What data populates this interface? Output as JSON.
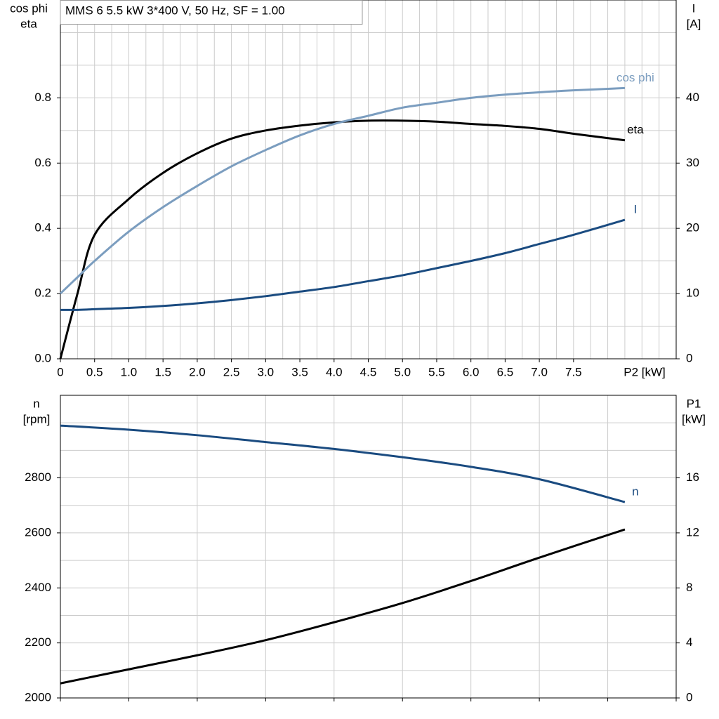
{
  "chart_data": [
    {
      "type": "line",
      "title": "MMS 6   5.5 kW   3*400 V, 50 Hz, SF = 1.00",
      "ylabel": [
        "cos phi",
        "eta"
      ],
      "y2label": [
        "I",
        "[A]"
      ],
      "xlabel": "P2 [kW]",
      "x": [
        0,
        0.25,
        0.5,
        1,
        1.5,
        2,
        2.5,
        3,
        3.5,
        4,
        4.5,
        5,
        5.5,
        6,
        6.5,
        7,
        7.5,
        8.25
      ],
      "xlim": [
        0,
        9
      ],
      "xticks": [
        0,
        0.5,
        {
          "value": 1,
          "label": "1.0"
        },
        1.5,
        {
          "value": 2,
          "label": "2.0"
        },
        2.5,
        {
          "value": 3,
          "label": "3.0"
        },
        3.5,
        {
          "value": 4,
          "label": "4.0"
        },
        4.5,
        {
          "value": 5,
          "label": "5.0"
        },
        5.5,
        {
          "value": 6,
          "label": "6.0"
        },
        6.5,
        {
          "value": 7,
          "label": "7.0"
        },
        7.5
      ],
      "xtick_labels": true,
      "ylim": [
        0,
        1.1
      ],
      "yticks": [
        {
          "value": 0,
          "label": "0.0"
        },
        0.2,
        0.4,
        0.6,
        0.8
      ],
      "y2lim": [
        0,
        55
      ],
      "y2ticks": [
        0,
        10,
        20,
        30,
        40
      ],
      "grid": true,
      "xgrid_per_tick": 2,
      "ygrid_per_tick": 2,
      "series": [
        {
          "name": "eta",
          "color": "#000000",
          "values": [
            0,
            0.2,
            0.38,
            0.49,
            0.57,
            0.63,
            0.675,
            0.7,
            0.715,
            0.725,
            0.73,
            0.73,
            0.727,
            0.72,
            0.714,
            0.705,
            0.69,
            0.67
          ]
        },
        {
          "name": "cos phi",
          "color": "#7b9dbf",
          "values": [
            0.2,
            0.25,
            0.3,
            0.39,
            0.465,
            0.53,
            0.59,
            0.64,
            0.685,
            0.72,
            0.745,
            0.77,
            0.785,
            0.8,
            0.81,
            0.817,
            0.823,
            0.83
          ]
        },
        {
          "name": "I",
          "color": "#1a4b80",
          "axis": "y2",
          "values": [
            7.5,
            7.5,
            7.6,
            7.8,
            8.1,
            8.5,
            9.0,
            9.6,
            10.3,
            11.0,
            11.9,
            12.8,
            13.9,
            15.0,
            16.2,
            17.6,
            19.0,
            21.3
          ]
        }
      ]
    },
    {
      "type": "line",
      "ylabel": [
        "n",
        "[rpm]"
      ],
      "y2label": [
        "P1",
        "[kW]"
      ],
      "x": [
        0,
        1,
        2,
        3,
        4,
        5,
        6,
        7,
        8.25
      ],
      "xlim": [
        0,
        9
      ],
      "xticks": [
        0,
        1,
        2,
        3,
        4,
        5,
        6,
        7,
        8,
        9
      ],
      "xtick_labels": false,
      "ylim": [
        2000,
        3100
      ],
      "yticks": [
        2000,
        2200,
        2400,
        2600,
        2800
      ],
      "y2lim": [
        0,
        22
      ],
      "y2ticks": [
        0,
        4,
        8,
        12,
        16
      ],
      "grid": true,
      "xgrid_per_tick": 1,
      "ygrid_per_tick": 2,
      "series": [
        {
          "name": "n",
          "color": "#1a4b80",
          "values": [
            2990,
            2975,
            2955,
            2930,
            2905,
            2875,
            2840,
            2795,
            2712
          ]
        },
        {
          "color": "#000000",
          "axis": "y2",
          "values": [
            1.06,
            2.08,
            3.1,
            4.2,
            5.5,
            6.9,
            8.5,
            10.2,
            12.25
          ]
        }
      ]
    }
  ]
}
